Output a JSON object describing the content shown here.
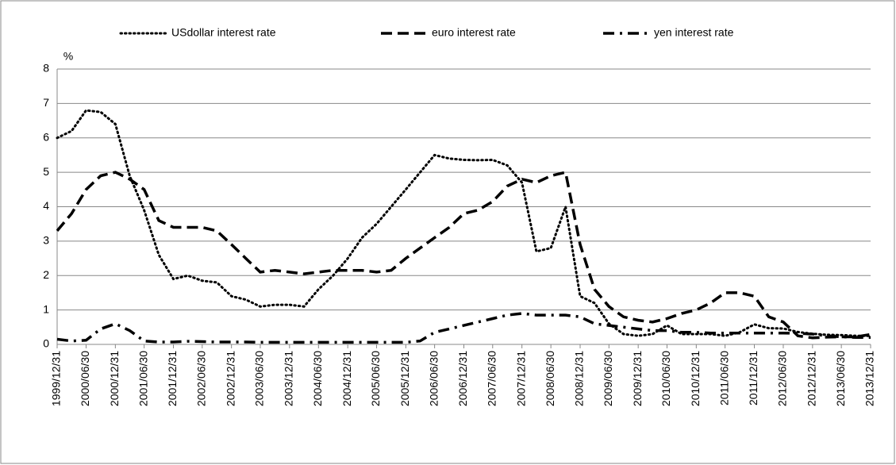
{
  "chart_data": {
    "type": "line",
    "y_label": "%",
    "x": [
      "1999/12/31",
      "2000/03/31",
      "2000/06/30",
      "2000/09/30",
      "2000/12/31",
      "2001/03/31",
      "2001/06/30",
      "2001/09/30",
      "2001/12/31",
      "2002/03/31",
      "2002/06/30",
      "2002/09/30",
      "2002/12/31",
      "2003/03/31",
      "2003/06/30",
      "2003/09/30",
      "2003/12/31",
      "2004/03/31",
      "2004/06/30",
      "2004/09/30",
      "2004/12/31",
      "2005/03/31",
      "2005/06/30",
      "2005/09/30",
      "2005/12/31",
      "2006/03/31",
      "2006/06/30",
      "2006/09/30",
      "2006/12/31",
      "2007/03/31",
      "2007/06/30",
      "2007/09/30",
      "2007/12/31",
      "2008/03/31",
      "2008/06/30",
      "2008/09/30",
      "2008/12/31",
      "2009/03/31",
      "2009/06/30",
      "2009/09/30",
      "2009/12/31",
      "2010/03/31",
      "2010/06/30",
      "2010/09/30",
      "2010/12/31",
      "2011/03/31",
      "2011/06/30",
      "2011/09/30",
      "2011/12/31",
      "2012/03/31",
      "2012/06/30",
      "2012/09/30",
      "2012/12/31",
      "2013/03/31",
      "2013/06/30",
      "2013/09/30",
      "2013/12/31"
    ],
    "series": [
      {
        "name": "USdollar interest rate",
        "color": "#000000",
        "dash": "dotted",
        "values": [
          6.0,
          6.2,
          6.8,
          6.75,
          6.4,
          4.9,
          3.9,
          2.6,
          1.9,
          2.0,
          1.85,
          1.8,
          1.4,
          1.3,
          1.1,
          1.15,
          1.15,
          1.1,
          1.6,
          2.0,
          2.5,
          3.1,
          3.5,
          4.0,
          4.5,
          5.0,
          5.5,
          5.4,
          5.36,
          5.35,
          5.36,
          5.2,
          4.7,
          2.7,
          2.8,
          4.0,
          1.4,
          1.2,
          0.6,
          0.3,
          0.25,
          0.3,
          0.55,
          0.3,
          0.3,
          0.3,
          0.25,
          0.35,
          0.58,
          0.47,
          0.46,
          0.36,
          0.31,
          0.28,
          0.27,
          0.25,
          0.25
        ]
      },
      {
        "name": "euro interest rate",
        "color": "#000000",
        "dash": "dashed",
        "values": [
          3.3,
          3.8,
          4.5,
          4.9,
          5.0,
          4.8,
          4.5,
          3.6,
          3.4,
          3.4,
          3.4,
          3.3,
          2.9,
          2.5,
          2.1,
          2.15,
          2.1,
          2.05,
          2.1,
          2.15,
          2.15,
          2.15,
          2.1,
          2.15,
          2.5,
          2.8,
          3.1,
          3.4,
          3.8,
          3.9,
          4.15,
          4.6,
          4.8,
          4.7,
          4.9,
          5.0,
          2.9,
          1.6,
          1.1,
          0.8,
          0.7,
          0.65,
          0.75,
          0.9,
          1.0,
          1.2,
          1.5,
          1.5,
          1.4,
          0.8,
          0.65,
          0.25,
          0.19,
          0.21,
          0.22,
          0.22,
          0.29
        ]
      },
      {
        "name": "yen interest rate",
        "color": "#000000",
        "dash": "dashdot",
        "values": [
          0.15,
          0.1,
          0.12,
          0.45,
          0.6,
          0.4,
          0.1,
          0.07,
          0.07,
          0.09,
          0.08,
          0.07,
          0.07,
          0.07,
          0.06,
          0.06,
          0.06,
          0.06,
          0.06,
          0.06,
          0.06,
          0.06,
          0.06,
          0.06,
          0.06,
          0.1,
          0.35,
          0.45,
          0.55,
          0.65,
          0.75,
          0.85,
          0.9,
          0.85,
          0.85,
          0.85,
          0.8,
          0.6,
          0.55,
          0.5,
          0.45,
          0.4,
          0.4,
          0.35,
          0.35,
          0.33,
          0.33,
          0.33,
          0.33,
          0.33,
          0.33,
          0.32,
          0.3,
          0.25,
          0.22,
          0.2,
          0.2
        ]
      }
    ],
    "xlim": [
      "1999/12/31",
      "2013/12/31"
    ],
    "xticks": [
      "1999/12/31",
      "2000/06/30",
      "2000/12/31",
      "2001/06/30",
      "2001/12/31",
      "2002/06/30",
      "2002/12/31",
      "2003/06/30",
      "2003/12/31",
      "2004/06/30",
      "2004/12/31",
      "2005/06/30",
      "2005/12/31",
      "2006/06/30",
      "2006/12/31",
      "2007/06/30",
      "2007/12/31",
      "2008/06/30",
      "2008/12/31",
      "2009/06/30",
      "2009/12/31",
      "2010/06/30",
      "2010/12/31",
      "2011/06/30",
      "2011/12/31",
      "2012/06/30",
      "2012/12/31",
      "2013/06/30",
      "2013/12/31"
    ],
    "ylim": [
      0,
      8
    ],
    "yticks": [
      0,
      1,
      2,
      3,
      4,
      5,
      6,
      7,
      8
    ],
    "grid": true,
    "legend": "top"
  }
}
